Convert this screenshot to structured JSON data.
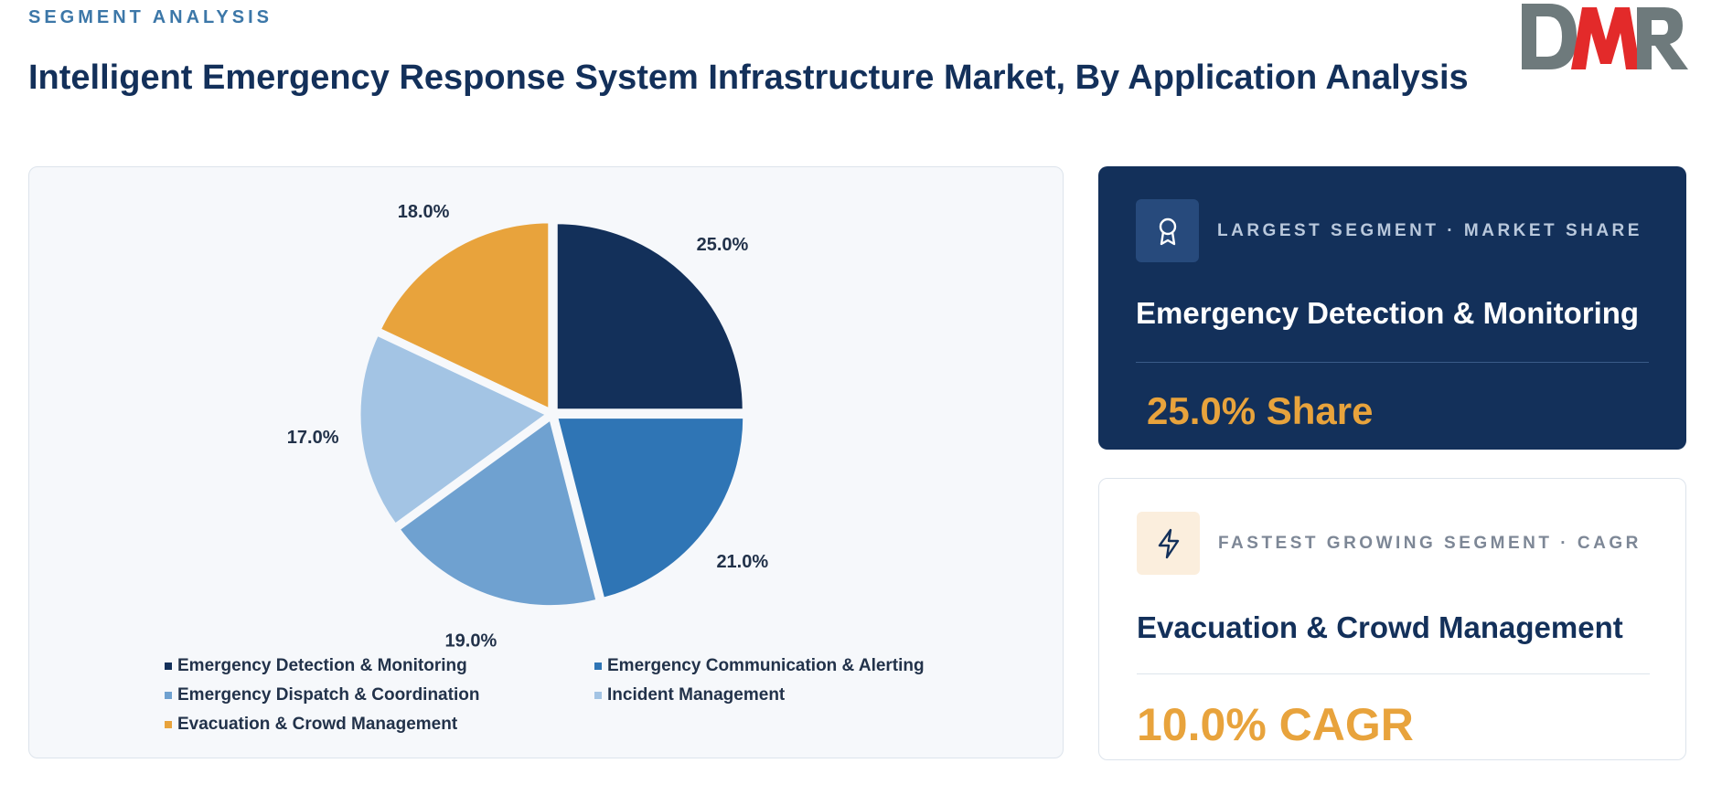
{
  "header": {
    "kicker": "SEGMENT ANALYSIS",
    "title": "Intelligent Emergency Response System Infrastructure Market, By Application Analysis",
    "logo_text": "DMR"
  },
  "chart_data": {
    "type": "pie",
    "categories": [
      "Emergency Detection & Monitoring",
      "Emergency Communication & Alerting",
      "Emergency Dispatch & Coordination",
      "Incident Management",
      "Evacuation & Crowd Management"
    ],
    "values": [
      25.0,
      21.0,
      19.0,
      17.0,
      18.0
    ],
    "labels": [
      "25.0%",
      "21.0%",
      "19.0%",
      "17.0%",
      "18.0%"
    ],
    "colors": [
      "#13305a",
      "#2f75b5",
      "#6fa1d0",
      "#a3c4e4",
      "#e8a33c"
    ],
    "legend_position": "bottom"
  },
  "cards": {
    "largest": {
      "icon": "award-icon",
      "kicker": "LARGEST SEGMENT  ·  MARKET SHARE",
      "heading": "Emergency Detection & Monitoring",
      "value": "25.0% Share"
    },
    "fastest": {
      "icon": "lightning-icon",
      "kicker": "FASTEST GROWING SEGMENT  ·  CAGR",
      "heading": "Evacuation & Crowd Management",
      "value": "10.0% CAGR"
    }
  }
}
